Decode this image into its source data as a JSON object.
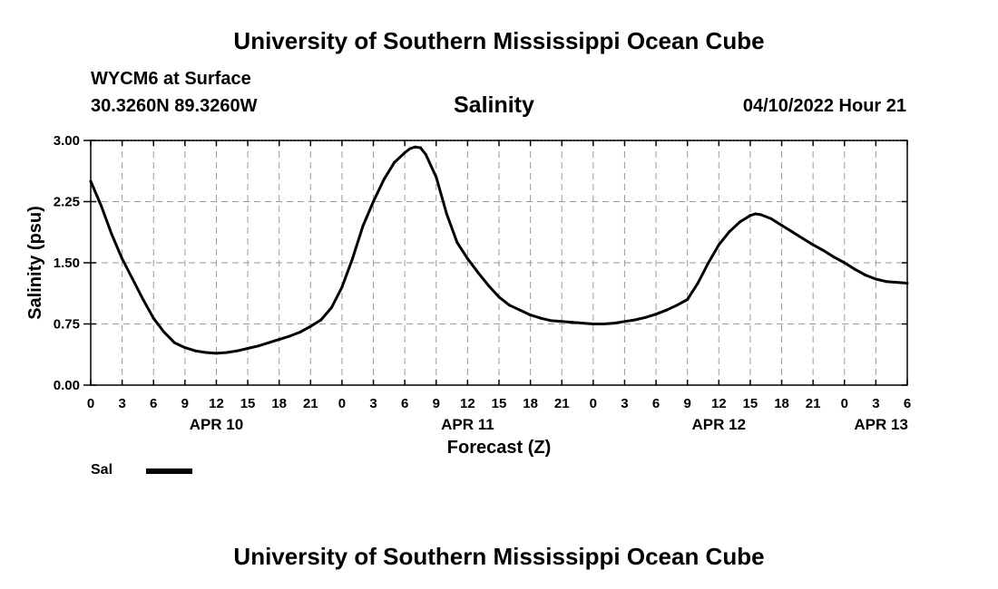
{
  "header": {
    "title": "University of Southern Mississippi Ocean Cube",
    "station": "WYCM6 at Surface",
    "coordinates": "30.3260N  89.3260W",
    "datetime": "04/10/2022 Hour 21"
  },
  "footer": {
    "title": "University of Southern Mississippi Ocean Cube"
  },
  "legend": {
    "label": "Sal",
    "color": "#000000"
  },
  "chart_data": {
    "type": "line",
    "title": "Salinity",
    "xlabel": "Forecast (Z)",
    "ylabel": "Salinity (psu)",
    "xlim": [
      0,
      78
    ],
    "ylim": [
      0,
      3.0
    ],
    "yticks": [
      0.0,
      0.75,
      1.5,
      2.25,
      3.0
    ],
    "ytick_labels": [
      "0.00",
      "0.75",
      "1.50",
      "2.25",
      "3.00"
    ],
    "xticks": [
      0,
      3,
      6,
      9,
      12,
      15,
      18,
      21,
      24,
      27,
      30,
      33,
      36,
      39,
      42,
      45,
      48,
      51,
      54,
      57,
      60,
      63,
      66,
      69,
      72,
      75,
      78
    ],
    "xtick_labels": [
      "0",
      "3",
      "6",
      "9",
      "12",
      "15",
      "18",
      "21",
      "0",
      "3",
      "6",
      "9",
      "12",
      "15",
      "18",
      "21",
      "0",
      "3",
      "6",
      "9",
      "12",
      "15",
      "18",
      "21",
      "0",
      "3",
      "6"
    ],
    "date_labels": [
      {
        "x": 12,
        "label": "APR 10"
      },
      {
        "x": 36,
        "label": "APR 11"
      },
      {
        "x": 60,
        "label": "APR 12"
      },
      {
        "x": 75.5,
        "label": "APR 13"
      }
    ],
    "grid": true,
    "series": [
      {
        "name": "Sal",
        "x": [
          0,
          1,
          2,
          3,
          4,
          5,
          6,
          7,
          8,
          9,
          10,
          11,
          12,
          13,
          14,
          15,
          16,
          17,
          18,
          19,
          20,
          21,
          22,
          23,
          24,
          25,
          26,
          27,
          28,
          29,
          30,
          30.5,
          31,
          31.5,
          32,
          33,
          34,
          35,
          36,
          37,
          38,
          39,
          40,
          41,
          42,
          43,
          44,
          45,
          46,
          47,
          48,
          49,
          50,
          51,
          52,
          53,
          54,
          55,
          56,
          57,
          58,
          59,
          60,
          61,
          62,
          63,
          63.5,
          64,
          65,
          66,
          67,
          68,
          69,
          70,
          71,
          72,
          73,
          74,
          75,
          76,
          77,
          78
        ],
        "values": [
          2.5,
          2.2,
          1.85,
          1.55,
          1.3,
          1.05,
          0.82,
          0.65,
          0.52,
          0.46,
          0.42,
          0.4,
          0.39,
          0.4,
          0.42,
          0.45,
          0.48,
          0.52,
          0.56,
          0.6,
          0.65,
          0.72,
          0.8,
          0.95,
          1.2,
          1.55,
          1.95,
          2.25,
          2.52,
          2.73,
          2.85,
          2.9,
          2.92,
          2.91,
          2.83,
          2.55,
          2.1,
          1.75,
          1.55,
          1.38,
          1.22,
          1.08,
          0.98,
          0.92,
          0.86,
          0.82,
          0.79,
          0.78,
          0.77,
          0.76,
          0.75,
          0.75,
          0.76,
          0.78,
          0.8,
          0.83,
          0.87,
          0.92,
          0.98,
          1.05,
          1.25,
          1.5,
          1.72,
          1.88,
          2.0,
          2.08,
          2.1,
          2.09,
          2.04,
          1.96,
          1.88,
          1.8,
          1.72,
          1.65,
          1.57,
          1.5,
          1.42,
          1.35,
          1.3,
          1.27,
          1.26,
          1.25
        ]
      }
    ]
  }
}
